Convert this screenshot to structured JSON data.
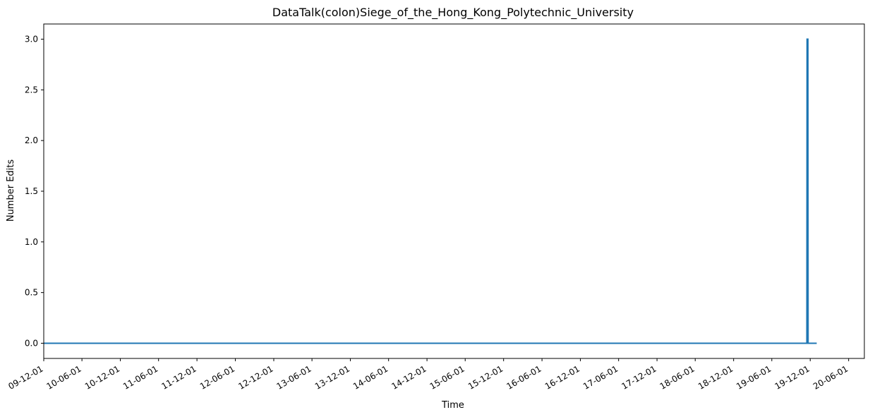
{
  "chart_data": {
    "type": "line",
    "title": "DataTalk(colon)Siege_of_the_Hong_Kong_Polytechnic_University",
    "xlabel": "Time",
    "ylabel": "Number Edits",
    "x_axis_type": "date",
    "x_tick_format": "YY-MM-DD",
    "xlim": [
      "2009-12-01",
      "2020-08-15"
    ],
    "ylim": [
      -0.15,
      3.15
    ],
    "grid": false,
    "legend": "none",
    "series_color": "#1f77b4",
    "x_ticks": [
      {
        "date": "2009-12-01",
        "label": "09-12-01"
      },
      {
        "date": "2010-06-01",
        "label": "10-06-01"
      },
      {
        "date": "2010-12-01",
        "label": "10-12-01"
      },
      {
        "date": "2011-06-01",
        "label": "11-06-01"
      },
      {
        "date": "2011-12-01",
        "label": "11-12-01"
      },
      {
        "date": "2012-06-01",
        "label": "12-06-01"
      },
      {
        "date": "2012-12-01",
        "label": "12-12-01"
      },
      {
        "date": "2013-06-01",
        "label": "13-06-01"
      },
      {
        "date": "2013-12-01",
        "label": "13-12-01"
      },
      {
        "date": "2014-06-01",
        "label": "14-06-01"
      },
      {
        "date": "2014-12-01",
        "label": "14-12-01"
      },
      {
        "date": "2015-06-01",
        "label": "15-06-01"
      },
      {
        "date": "2015-12-01",
        "label": "15-12-01"
      },
      {
        "date": "2016-06-01",
        "label": "16-06-01"
      },
      {
        "date": "2016-12-01",
        "label": "16-12-01"
      },
      {
        "date": "2017-06-01",
        "label": "17-06-01"
      },
      {
        "date": "2017-12-01",
        "label": "17-12-01"
      },
      {
        "date": "2018-06-01",
        "label": "18-06-01"
      },
      {
        "date": "2018-12-01",
        "label": "18-12-01"
      },
      {
        "date": "2019-06-01",
        "label": "19-06-01"
      },
      {
        "date": "2019-12-01",
        "label": "19-12-01"
      },
      {
        "date": "2020-06-01",
        "label": "20-06-01"
      }
    ],
    "y_ticks": [
      {
        "value": 0.0,
        "label": "0.0"
      },
      {
        "value": 0.5,
        "label": "0.5"
      },
      {
        "value": 1.0,
        "label": "1.0"
      },
      {
        "value": 1.5,
        "label": "1.5"
      },
      {
        "value": 2.0,
        "label": "2.0"
      },
      {
        "value": 2.5,
        "label": "2.5"
      },
      {
        "value": 3.0,
        "label": "3.0"
      }
    ],
    "series": [
      {
        "points": [
          {
            "x": "2009-12-01",
            "y": 0
          },
          {
            "x": "2019-11-15",
            "y": 0
          },
          {
            "x": "2019-11-16",
            "y": 3
          },
          {
            "x": "2019-11-20",
            "y": 3
          },
          {
            "x": "2019-11-21",
            "y": 0
          },
          {
            "x": "2020-01-01",
            "y": 0
          }
        ]
      }
    ]
  }
}
